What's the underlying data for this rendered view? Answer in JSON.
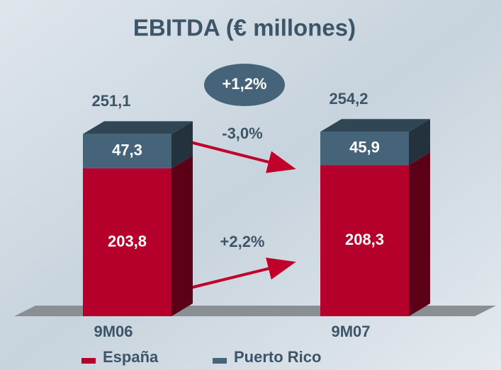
{
  "chart_data": {
    "type": "stacked-bar-3d",
    "title": "EBITDA (€ millones)",
    "categories": [
      "9M06",
      "9M07"
    ],
    "series": [
      {
        "name": "España",
        "color": "#b5002b",
        "values": [
          203.8,
          208.3
        ],
        "value_labels": [
          "203,8",
          "208,3"
        ]
      },
      {
        "name": "Puerto Rico",
        "color": "#45647a",
        "values": [
          47.3,
          45.9
        ],
        "value_labels": [
          "47,3",
          "45,9"
        ]
      }
    ],
    "totals": {
      "values": [
        251.1,
        254.2
      ],
      "value_labels": [
        "251,1",
        "254,2"
      ]
    },
    "annotations": [
      "+1,2%",
      "-3,0%",
      "+2,2%"
    ]
  }
}
